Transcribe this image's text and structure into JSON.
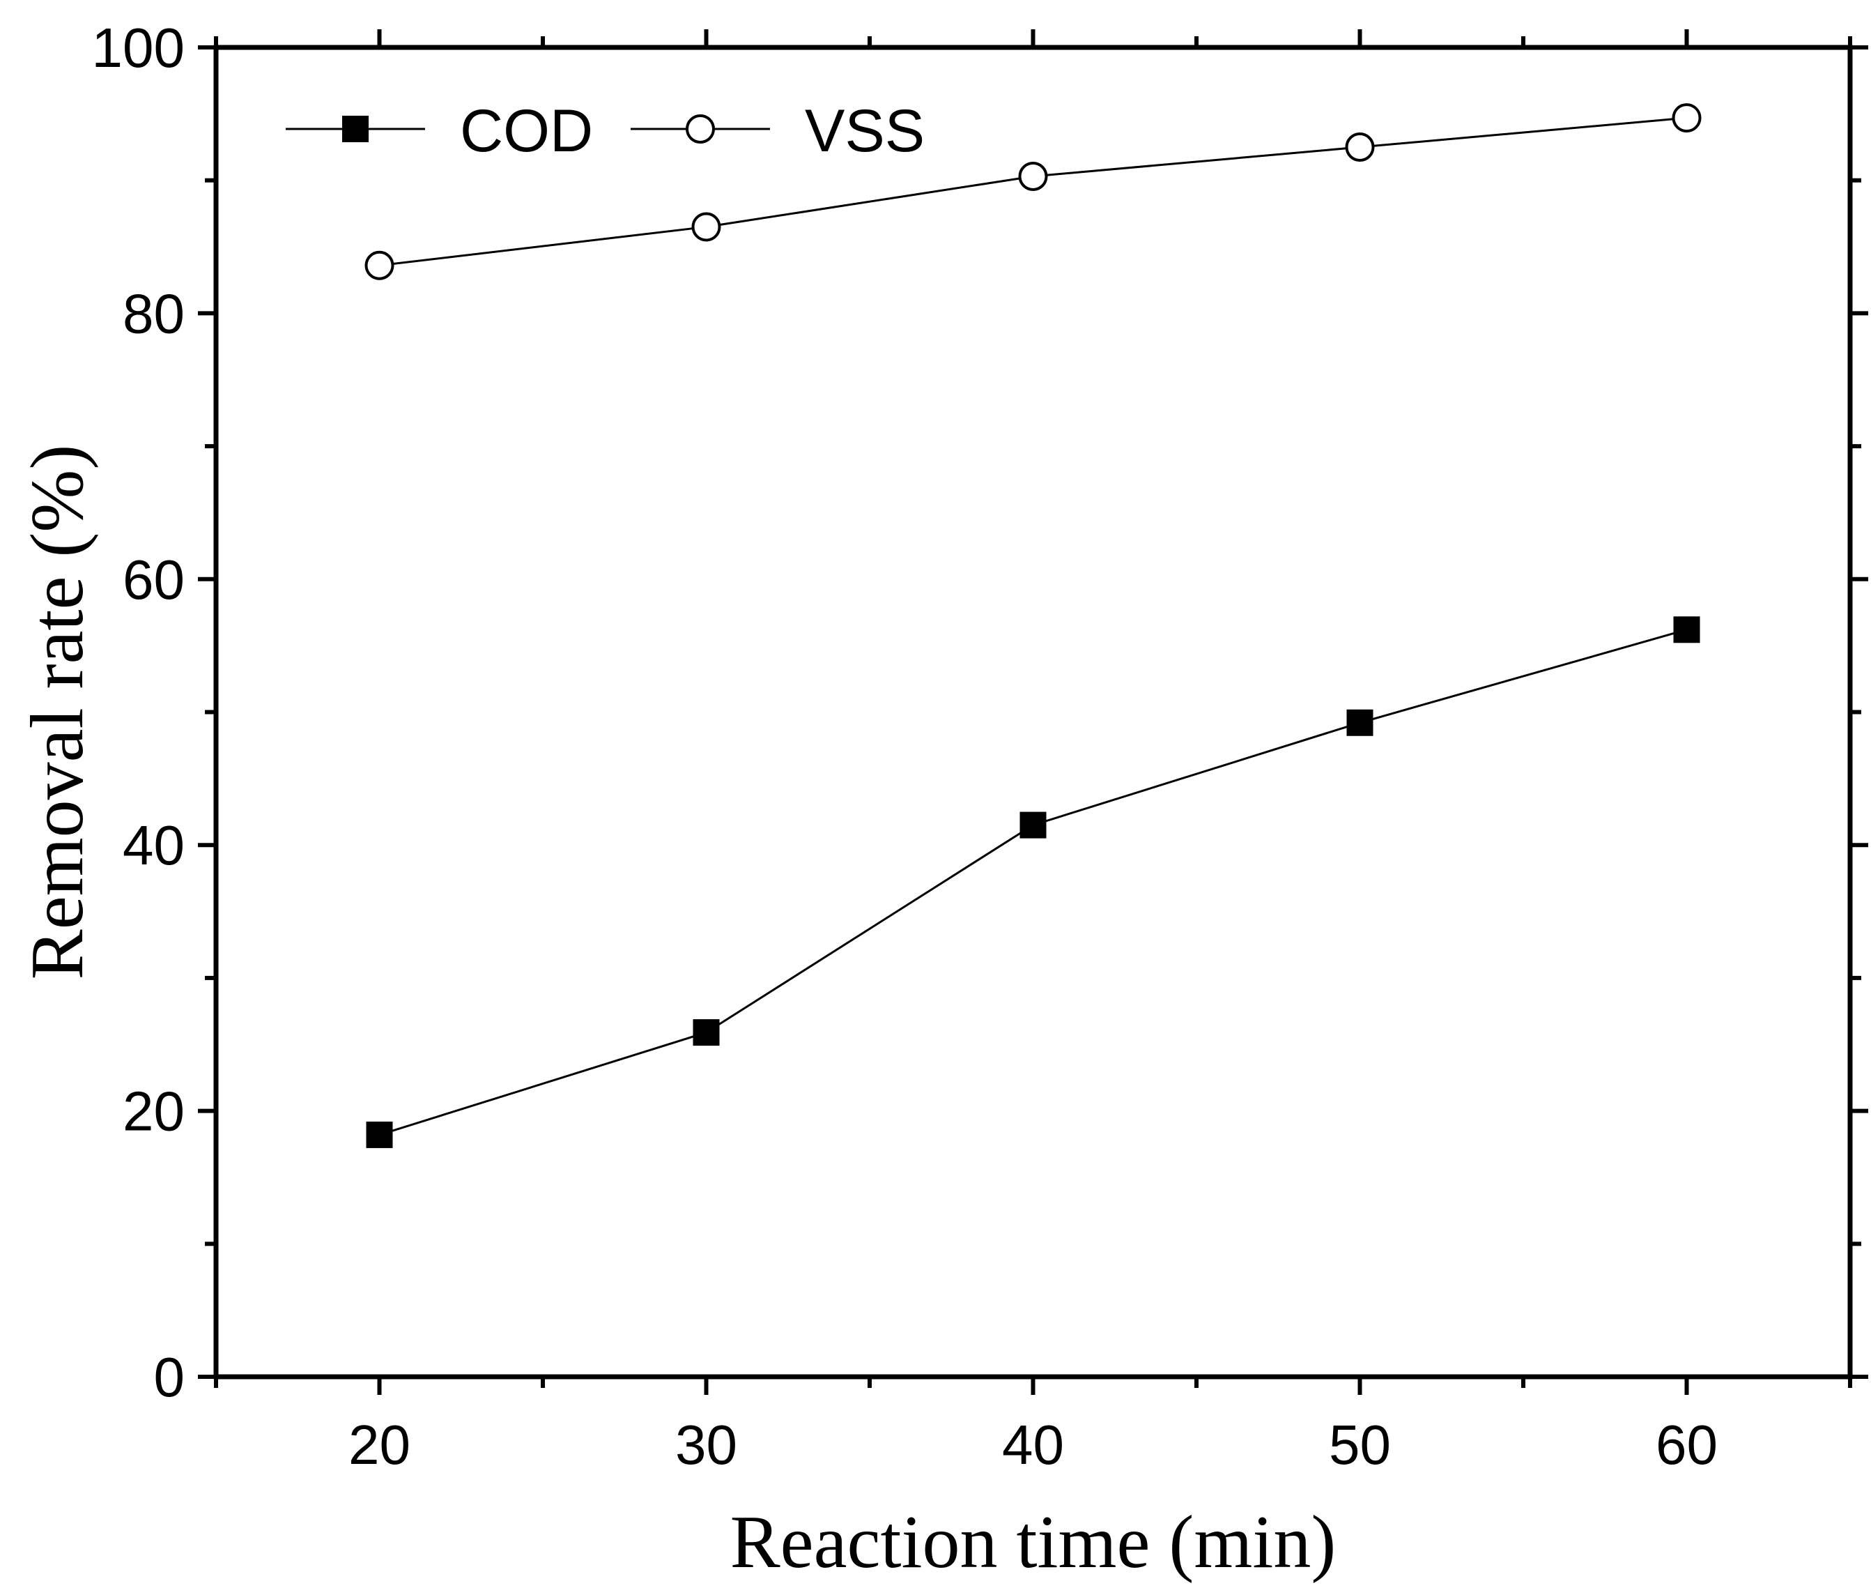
{
  "chart_data": {
    "type": "line",
    "title": "",
    "xlabel": "Reaction time (min)",
    "ylabel": "Removal rate (%)",
    "x": [
      20,
      30,
      40,
      50,
      60
    ],
    "xlim": [
      15,
      65
    ],
    "ylim": [
      0,
      100
    ],
    "xticks": [
      "20",
      "30",
      "40",
      "50",
      "60"
    ],
    "yticks": [
      "0",
      "20",
      "40",
      "60",
      "80",
      "100"
    ],
    "grid": false,
    "legend_position": "top-left",
    "series": [
      {
        "name": "COD",
        "marker": "filled-square",
        "color": "#000000",
        "values": [
          18.2,
          25.9,
          41.5,
          49.2,
          56.2
        ]
      },
      {
        "name": "VSS",
        "marker": "open-circle",
        "color": "#000000",
        "values": [
          83.6,
          86.5,
          90.3,
          92.5,
          94.7
        ]
      }
    ]
  }
}
